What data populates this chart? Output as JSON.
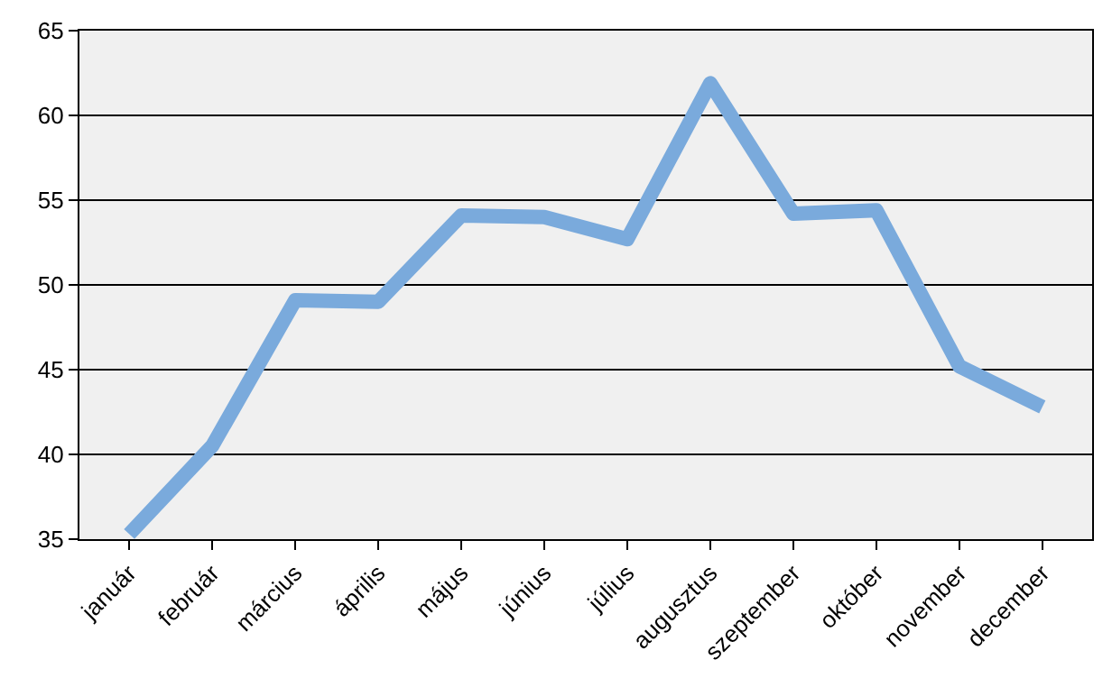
{
  "chart_data": {
    "type": "line",
    "categories": [
      "január",
      "február",
      "március",
      "április",
      "május",
      "június",
      "július",
      "augusztus",
      "szeptember",
      "október",
      "november",
      "december"
    ],
    "series": [
      {
        "color": "#7aaadc",
        "values": [
          35.3,
          40.5,
          49.1,
          49.0,
          54.1,
          54.0,
          52.7,
          61.9,
          54.2,
          54.4,
          45.2,
          42.8
        ]
      }
    ],
    "ylim": [
      35,
      65
    ],
    "yticks": [
      35,
      40,
      45,
      50,
      55,
      60,
      65
    ],
    "grid": "y",
    "marker": "none",
    "line_style": "solid"
  }
}
